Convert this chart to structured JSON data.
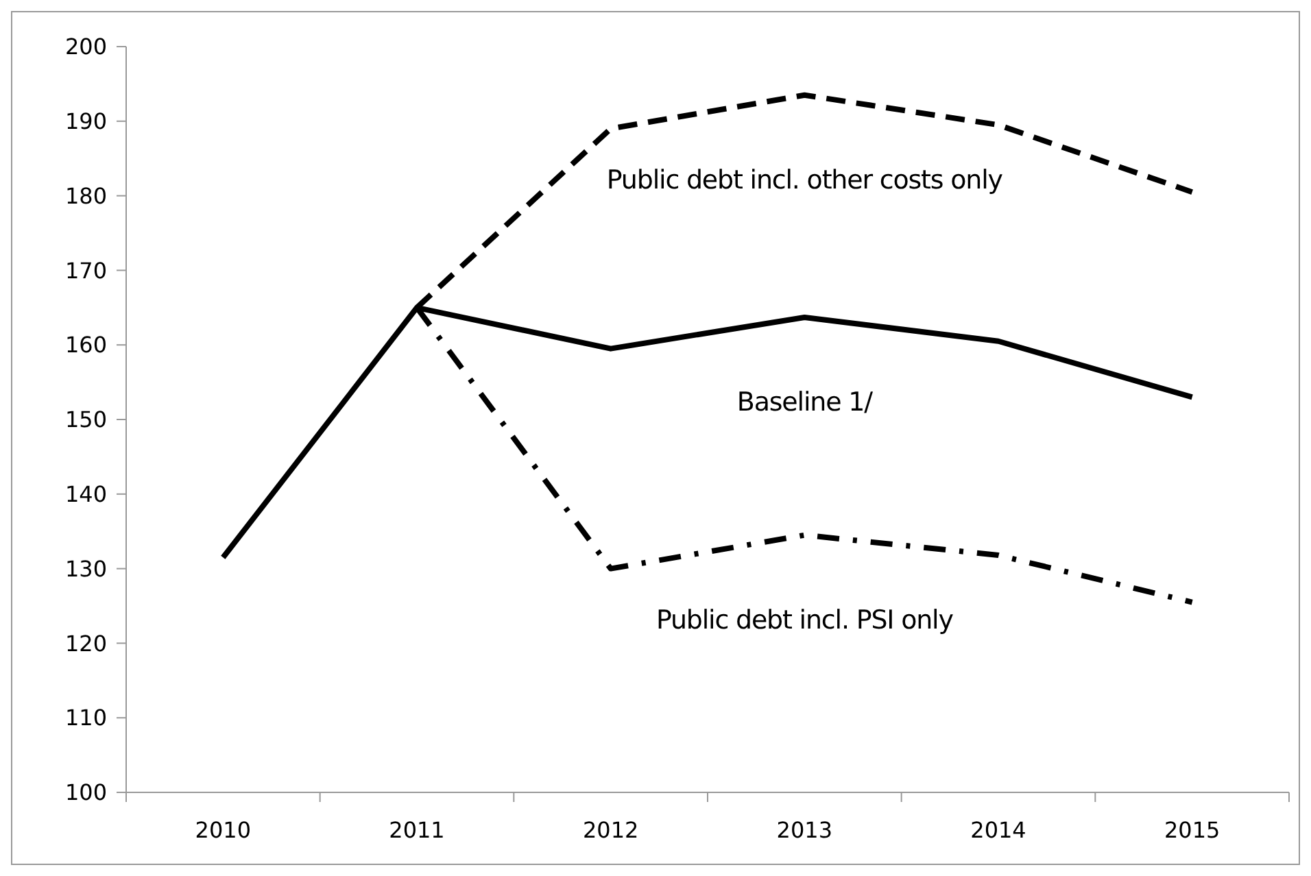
{
  "chart_data": {
    "type": "line",
    "categories": [
      "2010",
      "2011",
      "2012",
      "2013",
      "2014",
      "2015"
    ],
    "series": [
      {
        "name": "Public debt incl. other costs only",
        "color": "#000000",
        "line_style": "dashed",
        "values": [
          null,
          165,
          189,
          193.5,
          189.5,
          180.5
        ]
      },
      {
        "name": "Baseline 1/",
        "color": "#000000",
        "line_style": "solid",
        "values": [
          131.5,
          165,
          159.5,
          163.7,
          160.5,
          153
        ]
      },
      {
        "name": "Public debt incl. PSI only",
        "color": "#000000",
        "line_style": "dashdot",
        "values": [
          null,
          165,
          130,
          134.5,
          131.8,
          125.5
        ]
      }
    ],
    "ylim": [
      100,
      200
    ],
    "yticks": [
      100,
      110,
      120,
      130,
      140,
      150,
      160,
      170,
      180,
      190,
      200
    ],
    "grid": false,
    "marker": "none"
  }
}
